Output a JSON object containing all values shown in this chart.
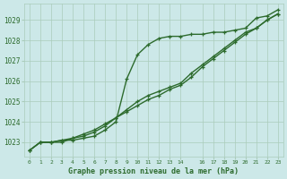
{
  "background_color": "#cce8e8",
  "plot_bg_color": "#cce8e8",
  "grid_color": "#aaccbb",
  "line_color": "#2d6b2d",
  "xlabel": "Graphe pression niveau de la mer (hPa)",
  "ylim": [
    1022.3,
    1029.8
  ],
  "xlim": [
    -0.5,
    23.5
  ],
  "yticks": [
    1023,
    1024,
    1025,
    1026,
    1027,
    1028,
    1029
  ],
  "xticks": [
    0,
    1,
    2,
    3,
    4,
    5,
    6,
    7,
    8,
    9,
    10,
    11,
    12,
    13,
    14,
    16,
    17,
    18,
    19,
    20,
    21,
    22,
    23
  ],
  "series": [
    [
      1022.6,
      1023.0,
      1023.0,
      1023.1,
      1023.1,
      1023.2,
      1023.3,
      1023.6,
      1024.0,
      1026.1,
      1027.3,
      1027.8,
      1028.1,
      1028.2,
      1028.2,
      1028.3,
      1028.3,
      1028.4,
      1028.4,
      1028.5,
      1028.6,
      1029.1,
      1029.2,
      1029.5
    ],
    [
      1022.6,
      1023.0,
      1023.0,
      1023.1,
      1023.2,
      1023.3,
      1023.5,
      1023.8,
      1024.2,
      1024.6,
      1025.0,
      1025.3,
      1025.5,
      1025.7,
      1025.9,
      1026.4,
      1026.8,
      1027.2,
      1027.6,
      1028.0,
      1028.4,
      1028.6,
      1029.0,
      1029.3
    ],
    [
      1022.6,
      1023.0,
      1023.0,
      1023.0,
      1023.2,
      1023.4,
      1023.6,
      1023.9,
      1024.2,
      1024.5,
      1024.8,
      1025.1,
      1025.3,
      1025.6,
      1025.8,
      1026.2,
      1026.7,
      1027.1,
      1027.5,
      1027.9,
      1028.3,
      1028.6,
      1029.0,
      1029.3
    ]
  ],
  "series_linewidths": [
    1.0,
    1.0,
    1.0
  ],
  "marker_size": 3.0
}
